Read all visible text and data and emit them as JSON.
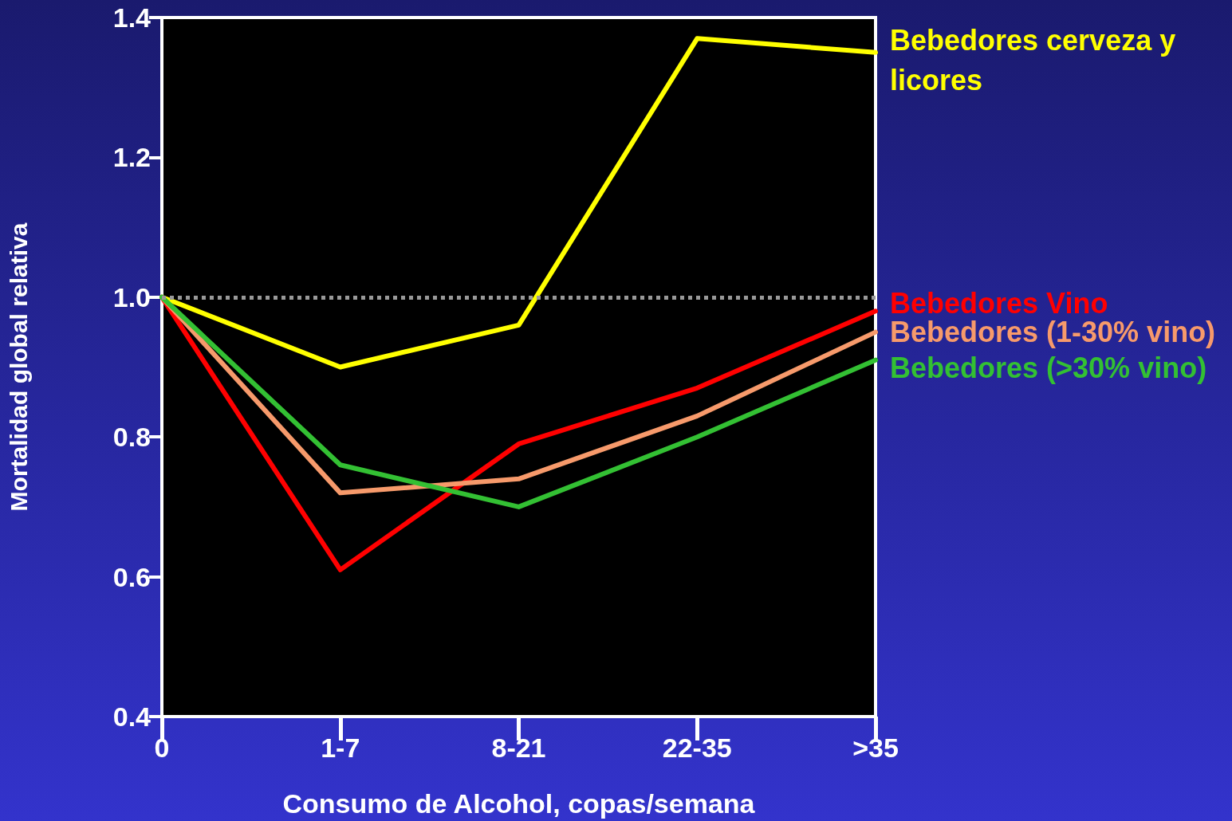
{
  "chart_data": {
    "type": "line",
    "xlabel": "Consumo de Alcohol, copas/semana",
    "ylabel": "Mortalidad global relativa",
    "categories": [
      "0",
      "1-7",
      "8-21",
      "22-35",
      ">35"
    ],
    "series": [
      {
        "name": "Bebedores cerveza y licores",
        "color": "#ffff00",
        "values": [
          1.0,
          0.9,
          0.96,
          1.37,
          1.35
        ]
      },
      {
        "name": "Bebedores Vino",
        "color": "#ff0000",
        "values": [
          1.0,
          0.61,
          0.79,
          0.87,
          0.98
        ]
      },
      {
        "name": "Bebedores (1-30% vino)",
        "color": "#f79a6b",
        "values": [
          1.0,
          0.72,
          0.74,
          0.83,
          0.95
        ]
      },
      {
        "name": "Bebedores (>30% vino)",
        "color": "#33c033",
        "values": [
          1.0,
          0.76,
          0.7,
          0.8,
          0.91
        ]
      }
    ],
    "ylim": [
      0.4,
      1.4
    ],
    "yticks": [
      0.4,
      0.6,
      0.8,
      {
        "value": 1,
        "label": "1.0"
      },
      1.2,
      1.4
    ],
    "ref_lines": [
      {
        "axis": "y",
        "value": 1,
        "color": "#999999",
        "line_style": "dotted"
      }
    ],
    "grid": false,
    "legend": false,
    "marker": "none",
    "line_style": "solid"
  }
}
